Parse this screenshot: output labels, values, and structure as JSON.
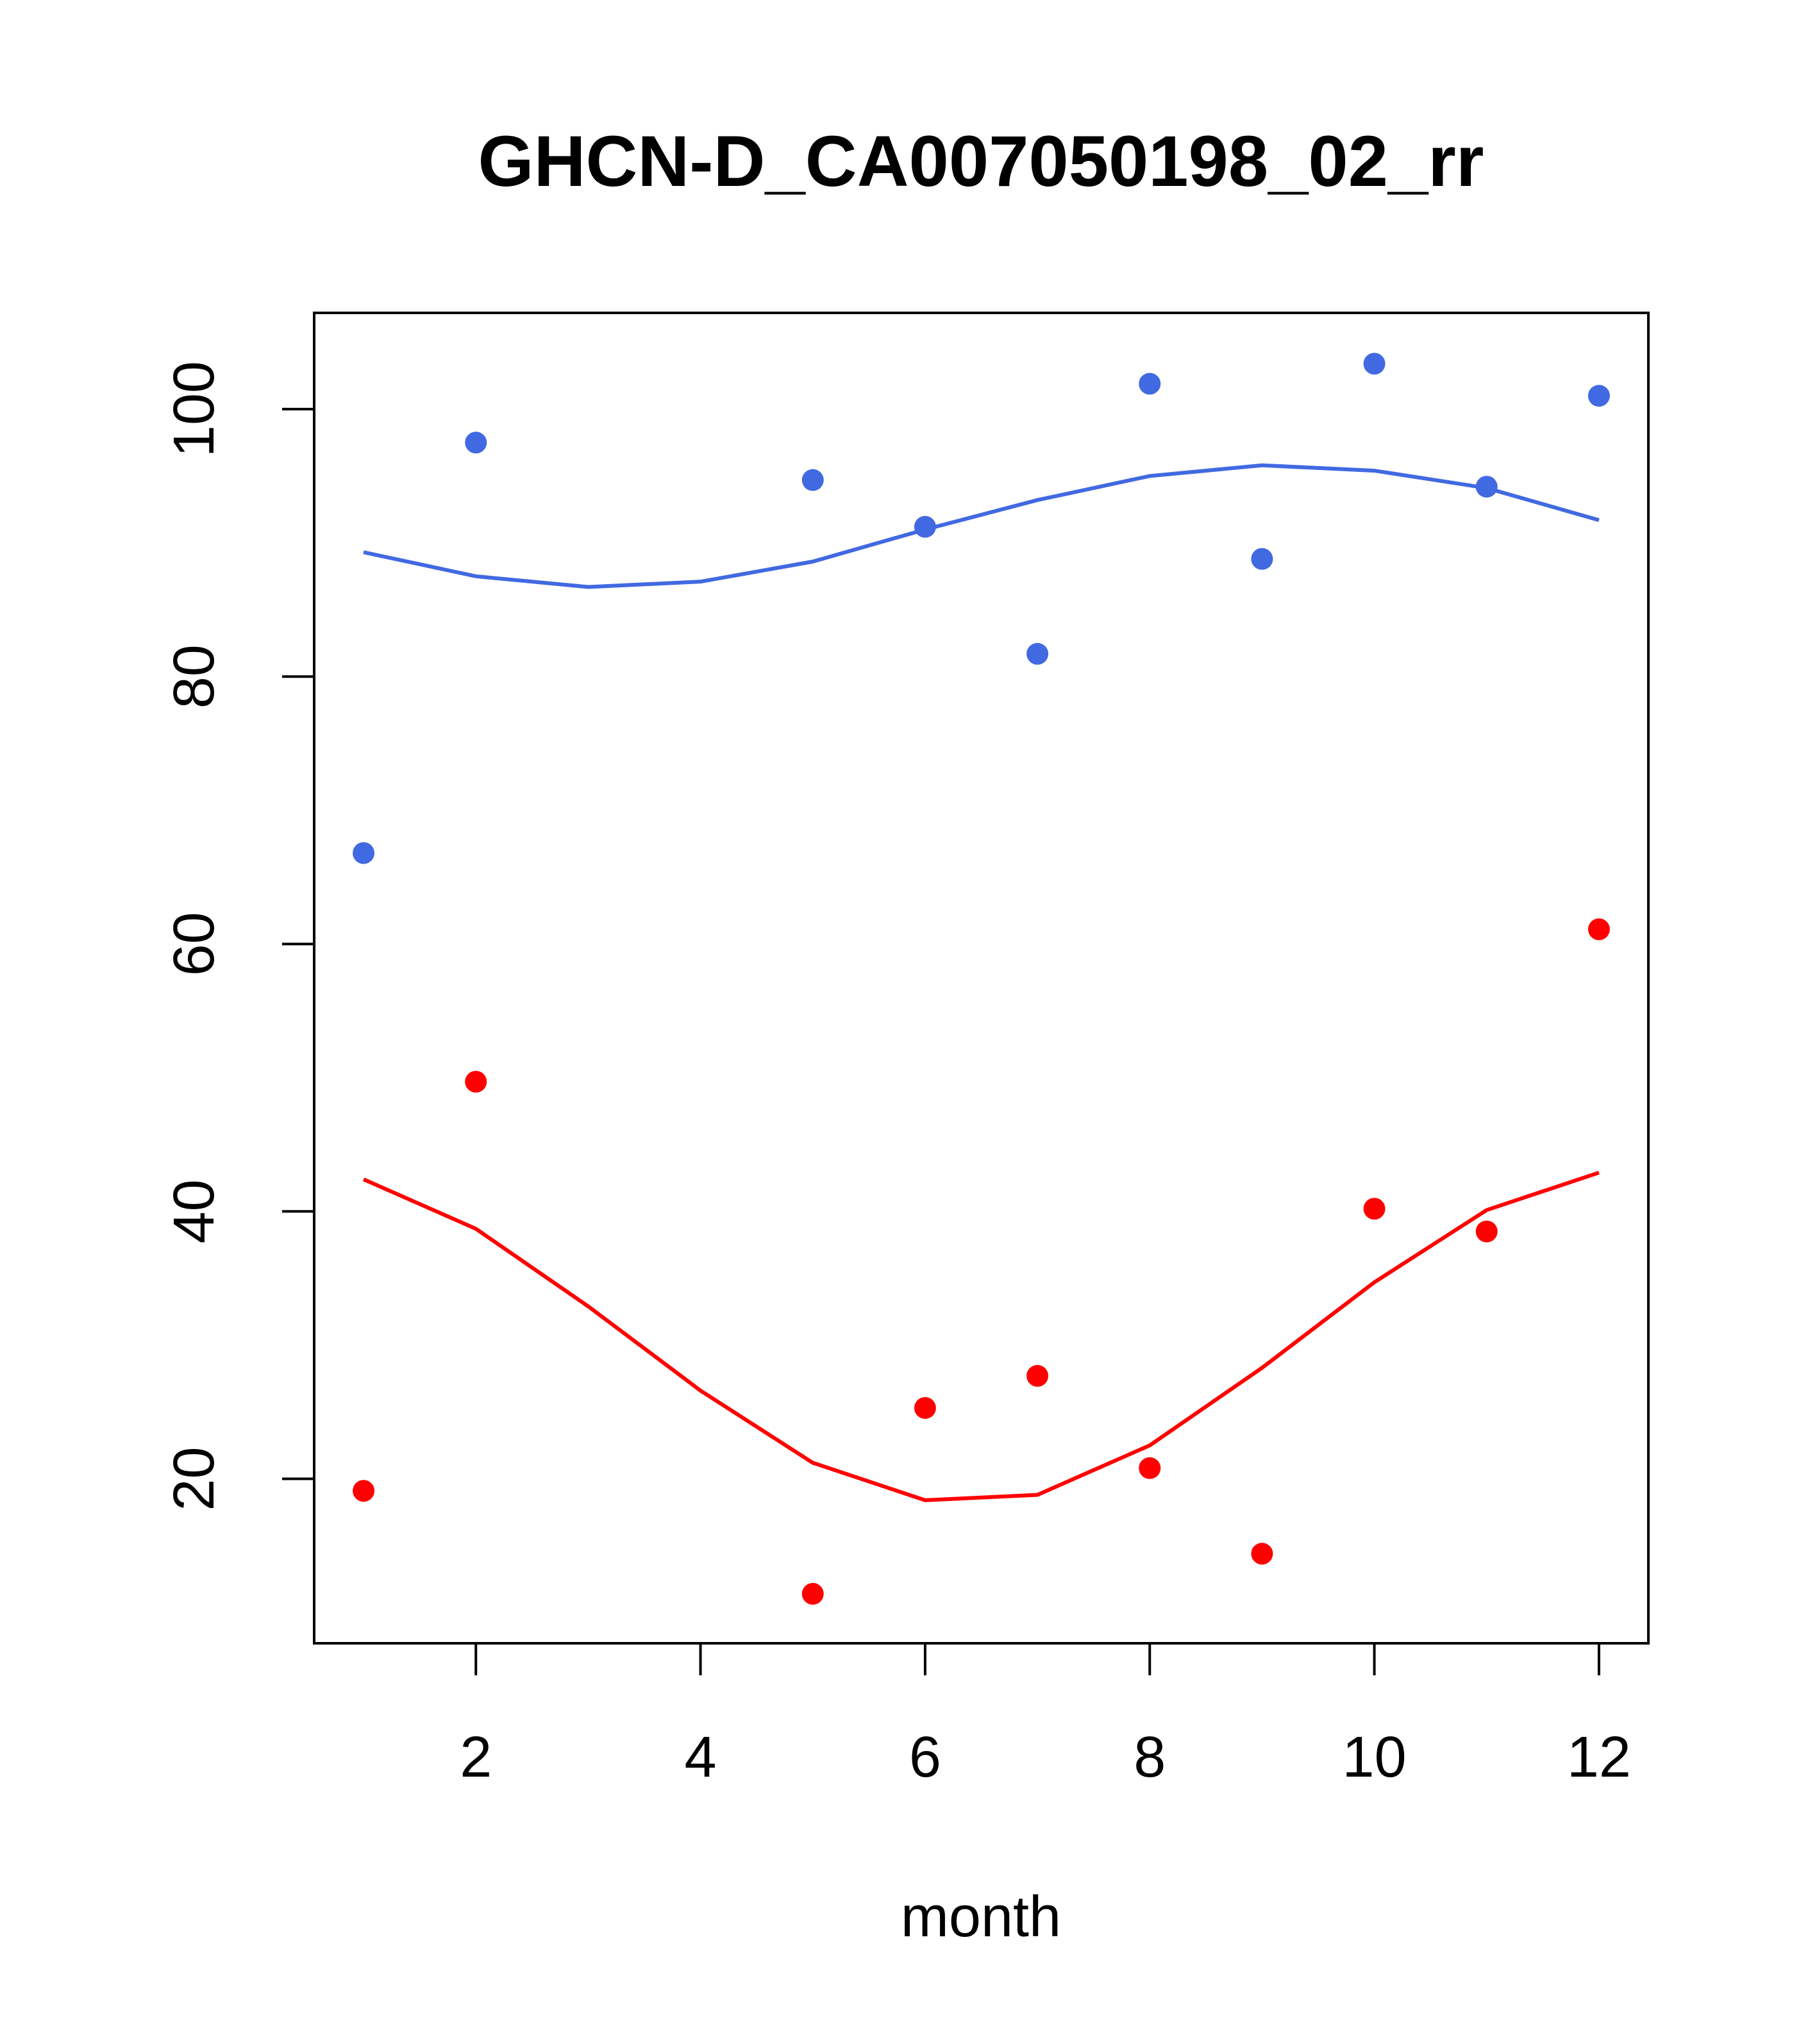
{
  "chart_data": {
    "type": "scatter",
    "title": "GHCN-D_CA007050198_02_rr",
    "xlabel": "month",
    "ylabel": "",
    "xlim": [
      0.56,
      12.44
    ],
    "ylim": [
      7.7,
      107.2
    ],
    "xticks": [
      2,
      4,
      6,
      8,
      10,
      12
    ],
    "yticks": [
      20,
      40,
      60,
      80,
      100
    ],
    "grid": false,
    "colors": {
      "blue": "#4169E1",
      "red": "#FF0000"
    },
    "x": [
      1,
      2,
      3,
      4,
      5,
      6,
      7,
      8,
      9,
      10,
      11,
      12
    ],
    "series": [
      {
        "name": "blue points",
        "color": "#4169E1",
        "kind": "points",
        "values": [
          66.8,
          97.5,
          null,
          null,
          94.7,
          91.2,
          81.7,
          101.9,
          88.8,
          103.4,
          94.2,
          101.0
        ]
      },
      {
        "name": "blue fit",
        "color": "#4169E1",
        "kind": "line",
        "values": [
          89.3,
          87.5,
          86.7,
          87.1,
          88.6,
          91.0,
          93.2,
          95.0,
          95.8,
          95.4,
          94.1,
          91.7
        ]
      },
      {
        "name": "red points",
        "color": "#FF0000",
        "kind": "points",
        "values": [
          19.1,
          49.7,
          null,
          null,
          11.4,
          25.3,
          27.7,
          20.8,
          14.4,
          40.2,
          38.5,
          61.1
        ]
      },
      {
        "name": "red fit",
        "color": "#FF0000",
        "kind": "line",
        "values": [
          42.4,
          38.7,
          32.9,
          26.6,
          21.2,
          18.4,
          18.8,
          22.5,
          28.3,
          34.7,
          40.1,
          42.9
        ]
      }
    ]
  }
}
